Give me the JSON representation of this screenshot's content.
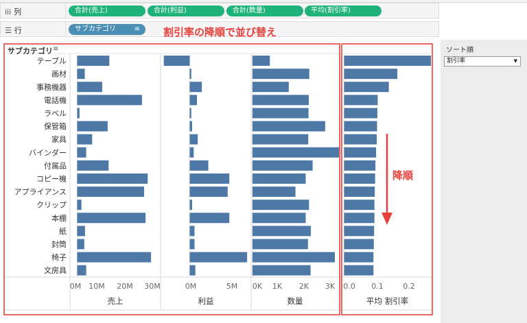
{
  "shelves": {
    "columns": {
      "icon": "iii",
      "label": "列",
      "pills": [
        "合計(売上)",
        "合計(利益)",
        "合計(数量)",
        "平均(割引率)"
      ]
    },
    "rows": {
      "icon": "☰",
      "label": "行",
      "pills": [
        "サブカテゴリ"
      ]
    }
  },
  "annotation": {
    "headline": "割引率の降順で並び替え",
    "arrow_label": "降順",
    "color": "#e8413c"
  },
  "header": {
    "row_header_title": "サブカテゴリ"
  },
  "sort_panel": {
    "title": "ソート順",
    "selected": "割引率"
  },
  "colors": {
    "bar": "#4e79a7",
    "pill_green": "#1fb37a",
    "pill_blue": "#4b8fb5",
    "highlight": "#e8413c"
  },
  "chart_data": {
    "type": "bar",
    "orientation": "horizontal",
    "categories": [
      "テーブル",
      "画材",
      "事務機器",
      "電話機",
      "ラベル",
      "保管箱",
      "家具",
      "バインダー",
      "付属品",
      "コピー機",
      "アプライアンス",
      "クリップ",
      "本棚",
      "紙",
      "封筒",
      "椅子",
      "文房具"
    ],
    "series": [
      {
        "name": "売上",
        "values": [
          13.5,
          3.2,
          10.5,
          27.2,
          1.0,
          12.8,
          6.3,
          3.8,
          13.2,
          29.6,
          28.1,
          1.8,
          28.7,
          3.3,
          3.0,
          31.0,
          3.8
        ],
        "ticks": [
          "0M",
          "10M",
          "20M",
          "30M"
        ],
        "xlim": [
          -3,
          35
        ]
      },
      {
        "name": "利益",
        "values": [
          -3.2,
          0.2,
          1.5,
          0.9,
          0.2,
          0.3,
          1.0,
          0.5,
          2.3,
          4.9,
          4.7,
          0.3,
          4.9,
          0.6,
          0.6,
          7.1,
          0.7
        ],
        "ticks": [
          "0M",
          "5M"
        ],
        "xlim": [
          -3.6,
          7.6
        ]
      },
      {
        "name": "数量",
        "values": [
          680,
          2220,
          1420,
          2200,
          2190,
          2840,
          2180,
          3380,
          2350,
          2080,
          1680,
          2210,
          2080,
          2280,
          2170,
          3220,
          2270
        ],
        "ticks": [
          "0K",
          "1K",
          "2K",
          "3K"
        ],
        "xlim": [
          -50,
          3380
        ]
      },
      {
        "name": "平均 割引率",
        "values": [
          0.266,
          0.163,
          0.137,
          0.103,
          0.102,
          0.101,
          0.1,
          0.098,
          0.096,
          0.095,
          0.094,
          0.093,
          0.093,
          0.092,
          0.091,
          0.09,
          0.09
        ],
        "ticks": [
          "0.0",
          "0.1",
          "0.2"
        ],
        "xlim": [
          -0.005,
          0.27
        ]
      }
    ]
  }
}
